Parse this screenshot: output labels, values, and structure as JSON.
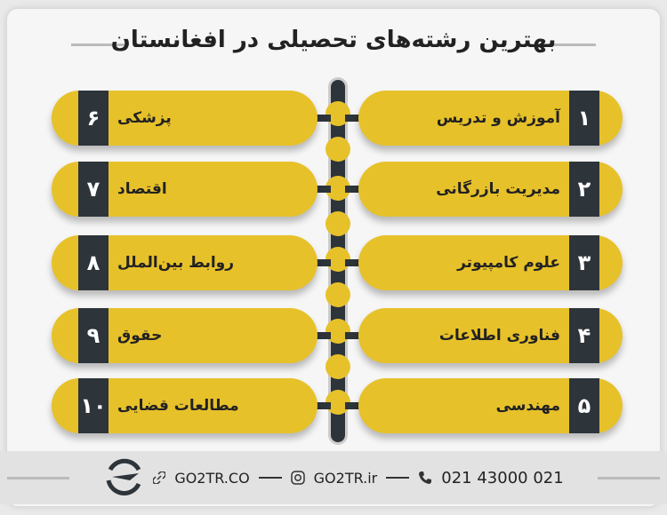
{
  "title": "بهترین رشته‌های تحصیلی در افغانستان",
  "fields": [
    {
      "num": "۱",
      "label": "آموزش و تدریس"
    },
    {
      "num": "۲",
      "label": "مدیریت بازرگانی"
    },
    {
      "num": "۳",
      "label": "علوم کامپیوتر"
    },
    {
      "num": "۴",
      "label": "فناوری اطلاعات"
    },
    {
      "num": "۵",
      "label": "مهندسی"
    },
    {
      "num": "۶",
      "label": "پزشکی"
    },
    {
      "num": "۷",
      "label": "اقتصاد"
    },
    {
      "num": "۸",
      "label": "روابط بین‌الملل"
    },
    {
      "num": "۹",
      "label": "حقوق"
    },
    {
      "num": "۱۰",
      "label": "مطالعات قضایی"
    }
  ],
  "footer": {
    "website": "GO2TR.CO",
    "instagram": "GO2TR.ir",
    "phone": "021 43000 021"
  },
  "colors": {
    "accent": "#e7c12a",
    "dark": "#2d343a"
  }
}
